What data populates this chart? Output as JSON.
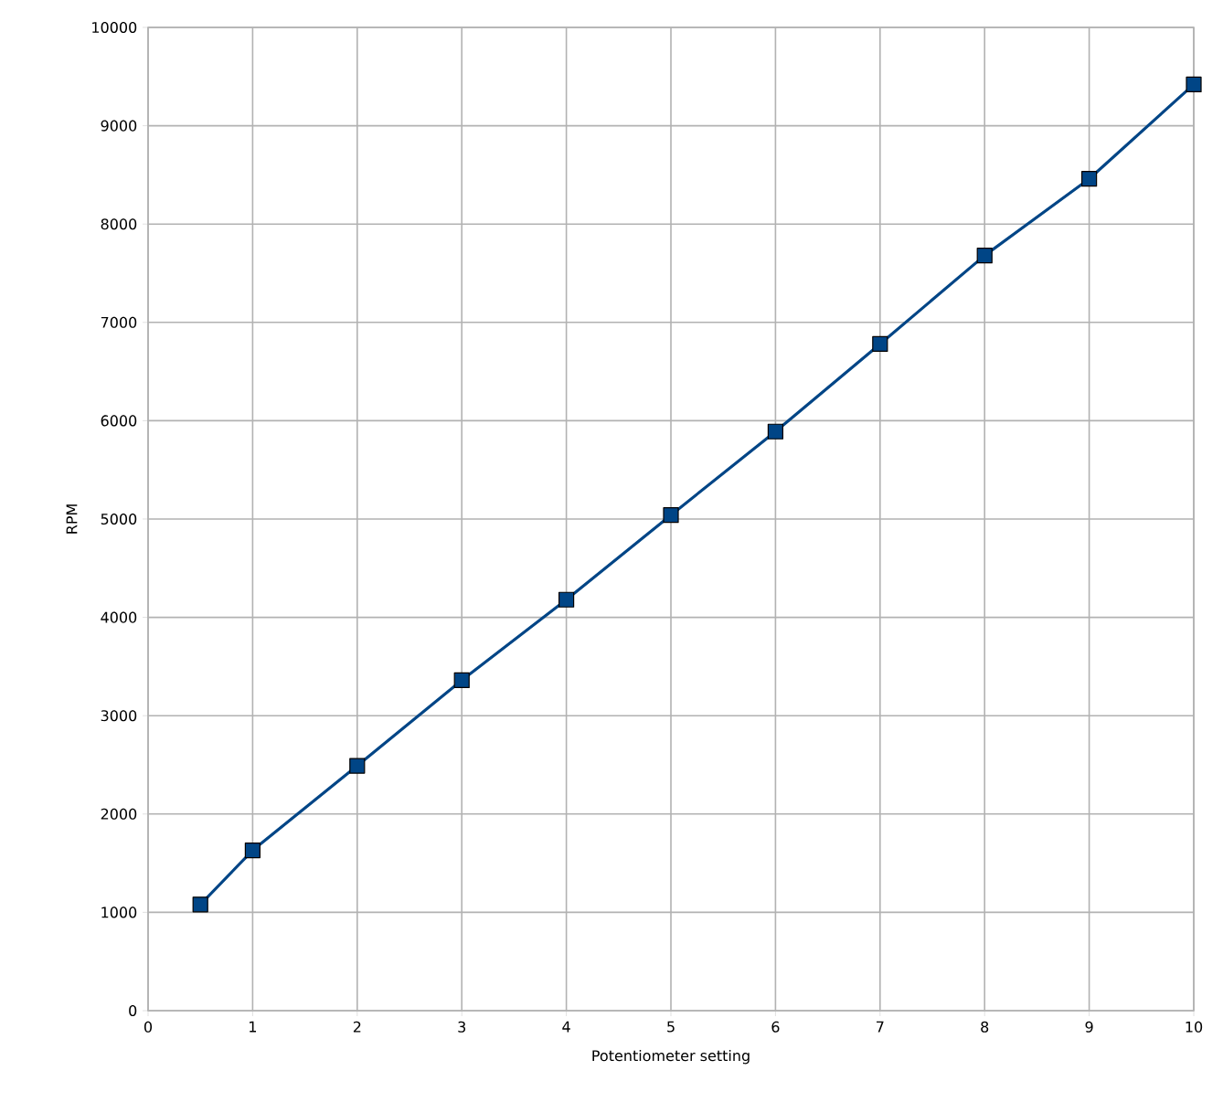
{
  "chart_data": {
    "type": "line",
    "xlabel": "Potentiometer setting",
    "ylabel": "RPM",
    "x": [
      0.5,
      1,
      2,
      3,
      4,
      5,
      6,
      7,
      8,
      9,
      10
    ],
    "series": [
      {
        "color": "#004586",
        "values": [
          1080,
          1630,
          2490,
          3360,
          4180,
          5040,
          5890,
          6780,
          7680,
          8460,
          9420
        ]
      }
    ],
    "xlim": [
      0,
      10
    ],
    "xticks": [
      0,
      1,
      2,
      3,
      4,
      5,
      6,
      7,
      8,
      9,
      10
    ],
    "ylim": [
      0,
      10000
    ],
    "yticks": [
      0,
      1000,
      2000,
      3000,
      4000,
      5000,
      6000,
      7000,
      8000,
      9000,
      10000
    ],
    "grid": true,
    "marker": "square",
    "line_style": "solid"
  }
}
